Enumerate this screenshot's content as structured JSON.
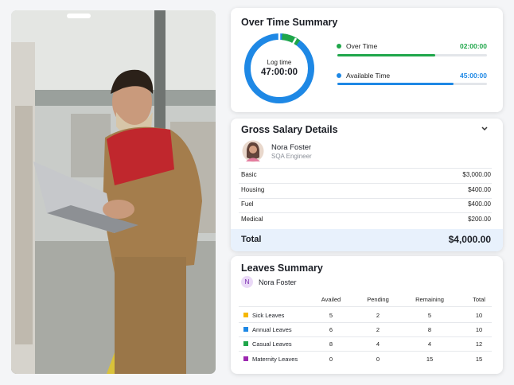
{
  "over_time_summary": {
    "title": "Over Time Summary",
    "center_label": "Log time",
    "center_value": "47:00:00",
    "items": [
      {
        "label": "Over Time",
        "value": "02:00:00"
      },
      {
        "label": "Available Time",
        "value": "45:00:00"
      }
    ]
  },
  "gross_salary": {
    "title": "Gross Salary Details",
    "employee": {
      "name": "Nora Foster",
      "role": "SQA Engineer"
    },
    "rows": [
      {
        "label": "Basic",
        "value": "$3,000.00"
      },
      {
        "label": "Housing",
        "value": "$400.00"
      },
      {
        "label": "Fuel",
        "value": "$400.00"
      },
      {
        "label": "Medical",
        "value": "$200.00"
      }
    ],
    "total": {
      "label": "Total",
      "value": "$4,000.00"
    }
  },
  "leaves_summary": {
    "title": "Leaves Summary",
    "employee_initial": "N",
    "employee": "Nora Foster",
    "columns": [
      "Availed",
      "Pending",
      "Remaining",
      "Total"
    ],
    "rows": [
      {
        "label": "Sick Leaves",
        "cells": [
          5,
          2,
          5,
          10
        ]
      },
      {
        "label": "Annual Leaves",
        "cells": [
          6,
          2,
          8,
          10
        ]
      },
      {
        "label": "Casual Leaves",
        "cells": [
          8,
          4,
          4,
          12
        ]
      },
      {
        "label": "Maternity Leaves",
        "cells": [
          0,
          0,
          15,
          15
        ]
      }
    ]
  }
}
